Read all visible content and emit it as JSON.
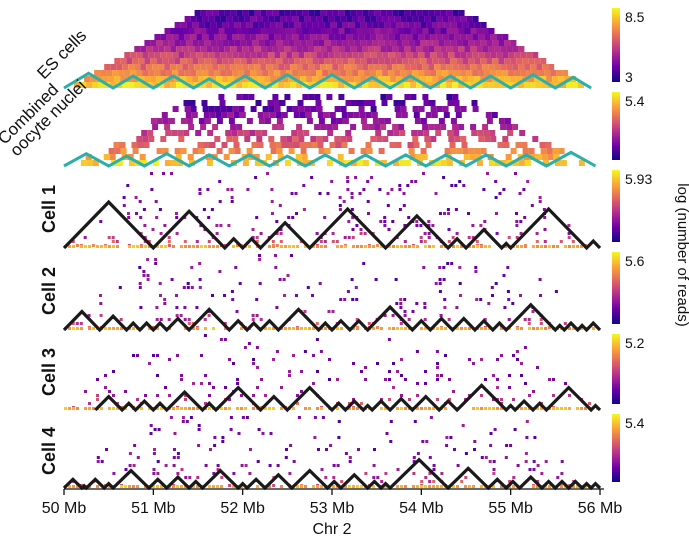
{
  "chart_data": {
    "type": "heatmap",
    "title": "",
    "xlabel": "Chr 2",
    "ylabel": "log (number of reads)",
    "xlim": [
      50,
      56
    ],
    "x_ticks": [
      {
        "value": 50,
        "label": "50 Mb"
      },
      {
        "value": 51,
        "label": "51 Mb"
      },
      {
        "value": 52,
        "label": "52 Mb"
      },
      {
        "value": 53,
        "label": "53 Mb"
      },
      {
        "value": 54,
        "label": "54 Mb"
      },
      {
        "value": 55,
        "label": "55 Mb"
      },
      {
        "value": 56,
        "label": "56 Mb"
      }
    ],
    "colormap": [
      "#0d0887",
      "#6a00a8",
      "#b12a90",
      "#e16462",
      "#fca636",
      "#f0f921"
    ],
    "tad_line_colors": {
      "bulk": "#2ab0a8",
      "single_cell": "#1a1a1a"
    },
    "panels": [
      {
        "id": "es",
        "label_lines": [
          "ES cells"
        ],
        "colorbar_ticks": [
          "8.5",
          "3"
        ],
        "density": 1.0,
        "max_height_mb": 3.0,
        "boundaries_mb": [
          50.0,
          50.55,
          51.0,
          51.45,
          51.8,
          52.25,
          52.75,
          53.25,
          53.65,
          54.1,
          54.55,
          55.0,
          55.5,
          55.9
        ]
      },
      {
        "id": "oocyte",
        "label_lines": [
          "Combined",
          "oocyte nuclei"
        ],
        "colorbar_ticks": [
          "5.4"
        ],
        "density": 0.5,
        "max_height_mb": 3.0,
        "boundaries_mb": [
          50.0,
          50.5,
          50.9,
          51.4,
          51.85,
          52.3,
          52.7,
          53.15,
          53.6,
          54.05,
          54.5,
          54.95,
          55.4,
          55.95
        ]
      },
      {
        "id": "cell1",
        "label_lines": [
          "Cell 1"
        ],
        "colorbar_ticks": [
          "5.93"
        ],
        "density": 0.12,
        "max_height_mb": 1.7,
        "boundaries_mb": [
          50.0,
          51.0,
          51.8,
          52.0,
          52.2,
          52.75,
          53.6,
          54.3,
          54.5,
          54.9,
          55.0,
          55.85,
          56.0
        ]
      },
      {
        "id": "cell2",
        "label_lines": [
          "Cell 2"
        ],
        "colorbar_ticks": [
          "5.6"
        ],
        "density": 0.08,
        "max_height_mb": 1.7,
        "boundaries_mb": [
          50.0,
          50.4,
          50.7,
          50.85,
          51.0,
          51.15,
          51.4,
          51.85,
          52.05,
          52.2,
          52.4,
          52.85,
          53.0,
          53.2,
          53.4,
          53.9,
          54.1,
          54.35,
          54.6,
          54.8,
          54.95,
          55.5,
          55.6,
          55.75,
          55.85,
          56.0
        ]
      },
      {
        "id": "cell3",
        "label_lines": [
          "Cell 3"
        ],
        "colorbar_ticks": [
          "5.2"
        ],
        "density": 0.08,
        "max_height_mb": 1.7,
        "boundaries_mb": [
          50.35,
          50.65,
          50.8,
          51.0,
          51.15,
          51.55,
          51.7,
          52.2,
          52.5,
          53.0,
          53.15,
          53.35,
          53.45,
          53.65,
          53.9,
          54.2,
          54.4,
          54.95,
          55.05,
          55.25,
          55.4,
          55.9,
          56.0
        ]
      },
      {
        "id": "cell4",
        "label_lines": [
          "Cell 4"
        ],
        "colorbar_ticks": [
          "5.4"
        ],
        "density": 0.08,
        "max_height_mb": 1.7,
        "boundaries_mb": [
          50.0,
          50.2,
          50.25,
          50.45,
          50.55,
          50.95,
          51.15,
          51.4,
          51.55,
          51.95,
          52.05,
          52.25,
          52.55,
          52.95,
          53.1,
          53.4,
          53.55,
          53.65,
          54.3,
          54.75,
          54.95,
          55.1,
          55.35,
          55.5,
          55.65,
          55.8,
          55.9,
          56.0
        ]
      }
    ]
  }
}
